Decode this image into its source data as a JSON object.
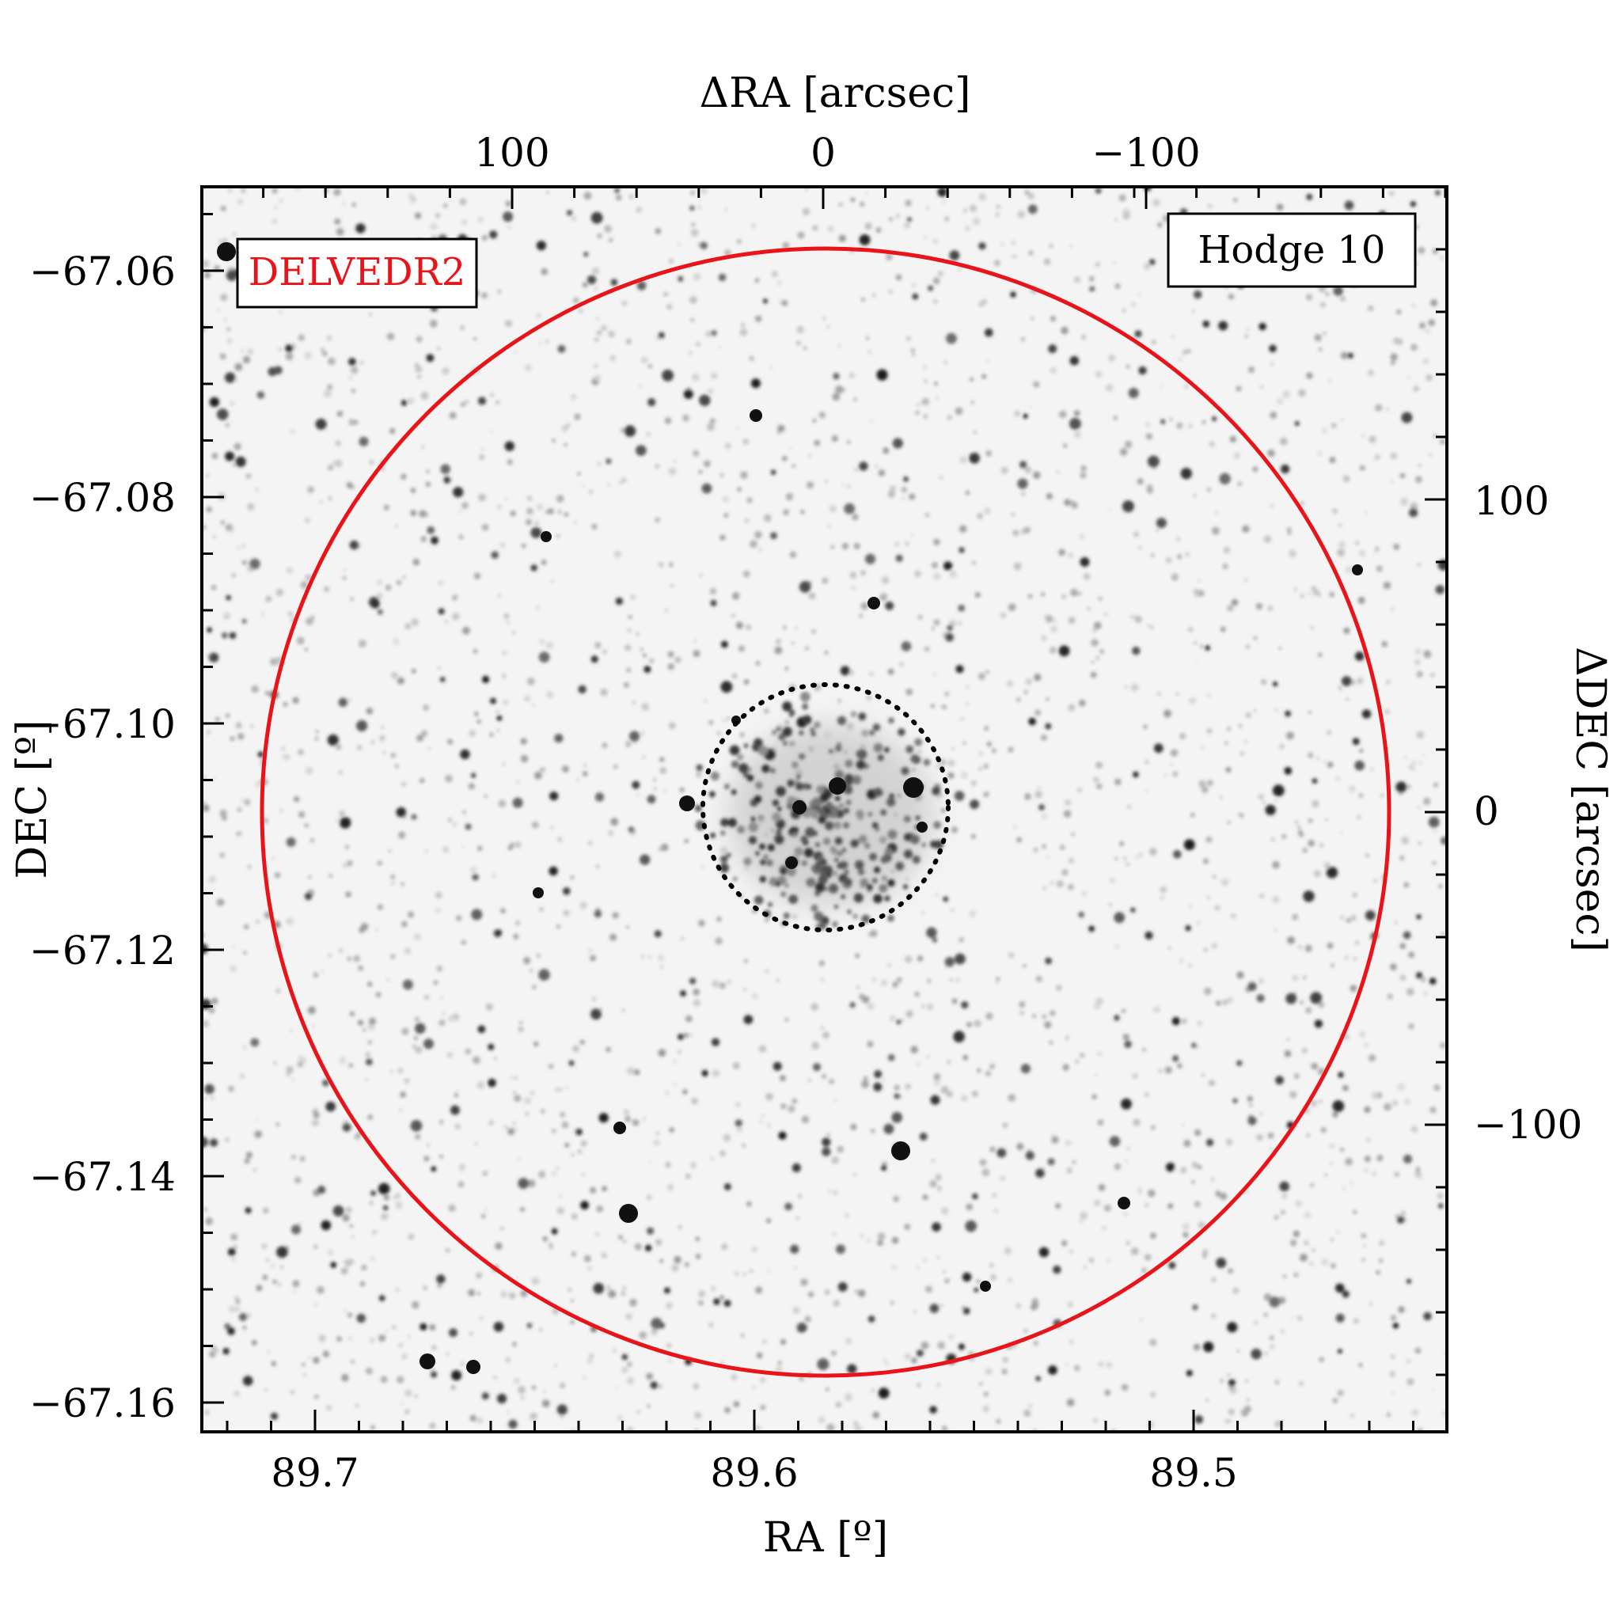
{
  "figure": {
    "object_name": "Hodge 10",
    "survey_label": "DELVEDR2",
    "survey_color": "#e8141a",
    "bottom_axis_label": "RA [º]",
    "left_axis_label": "DEC [º]",
    "top_axis_label": "ΔRA [arcsec]",
    "right_axis_label": "ΔDEC [arcsec]",
    "bottom_ticks": [
      "89.7",
      "89.6",
      "89.5"
    ],
    "left_ticks": [
      "−67.06",
      "−67.08",
      "−67.10",
      "−67.12",
      "−67.14",
      "−67.16"
    ],
    "top_ticks": [
      "100",
      "0",
      "−100"
    ],
    "right_ticks": [
      "100",
      "0",
      "−100"
    ],
    "outer_circle_color": "#e8141a",
    "inner_circle_style": "dotted"
  }
}
